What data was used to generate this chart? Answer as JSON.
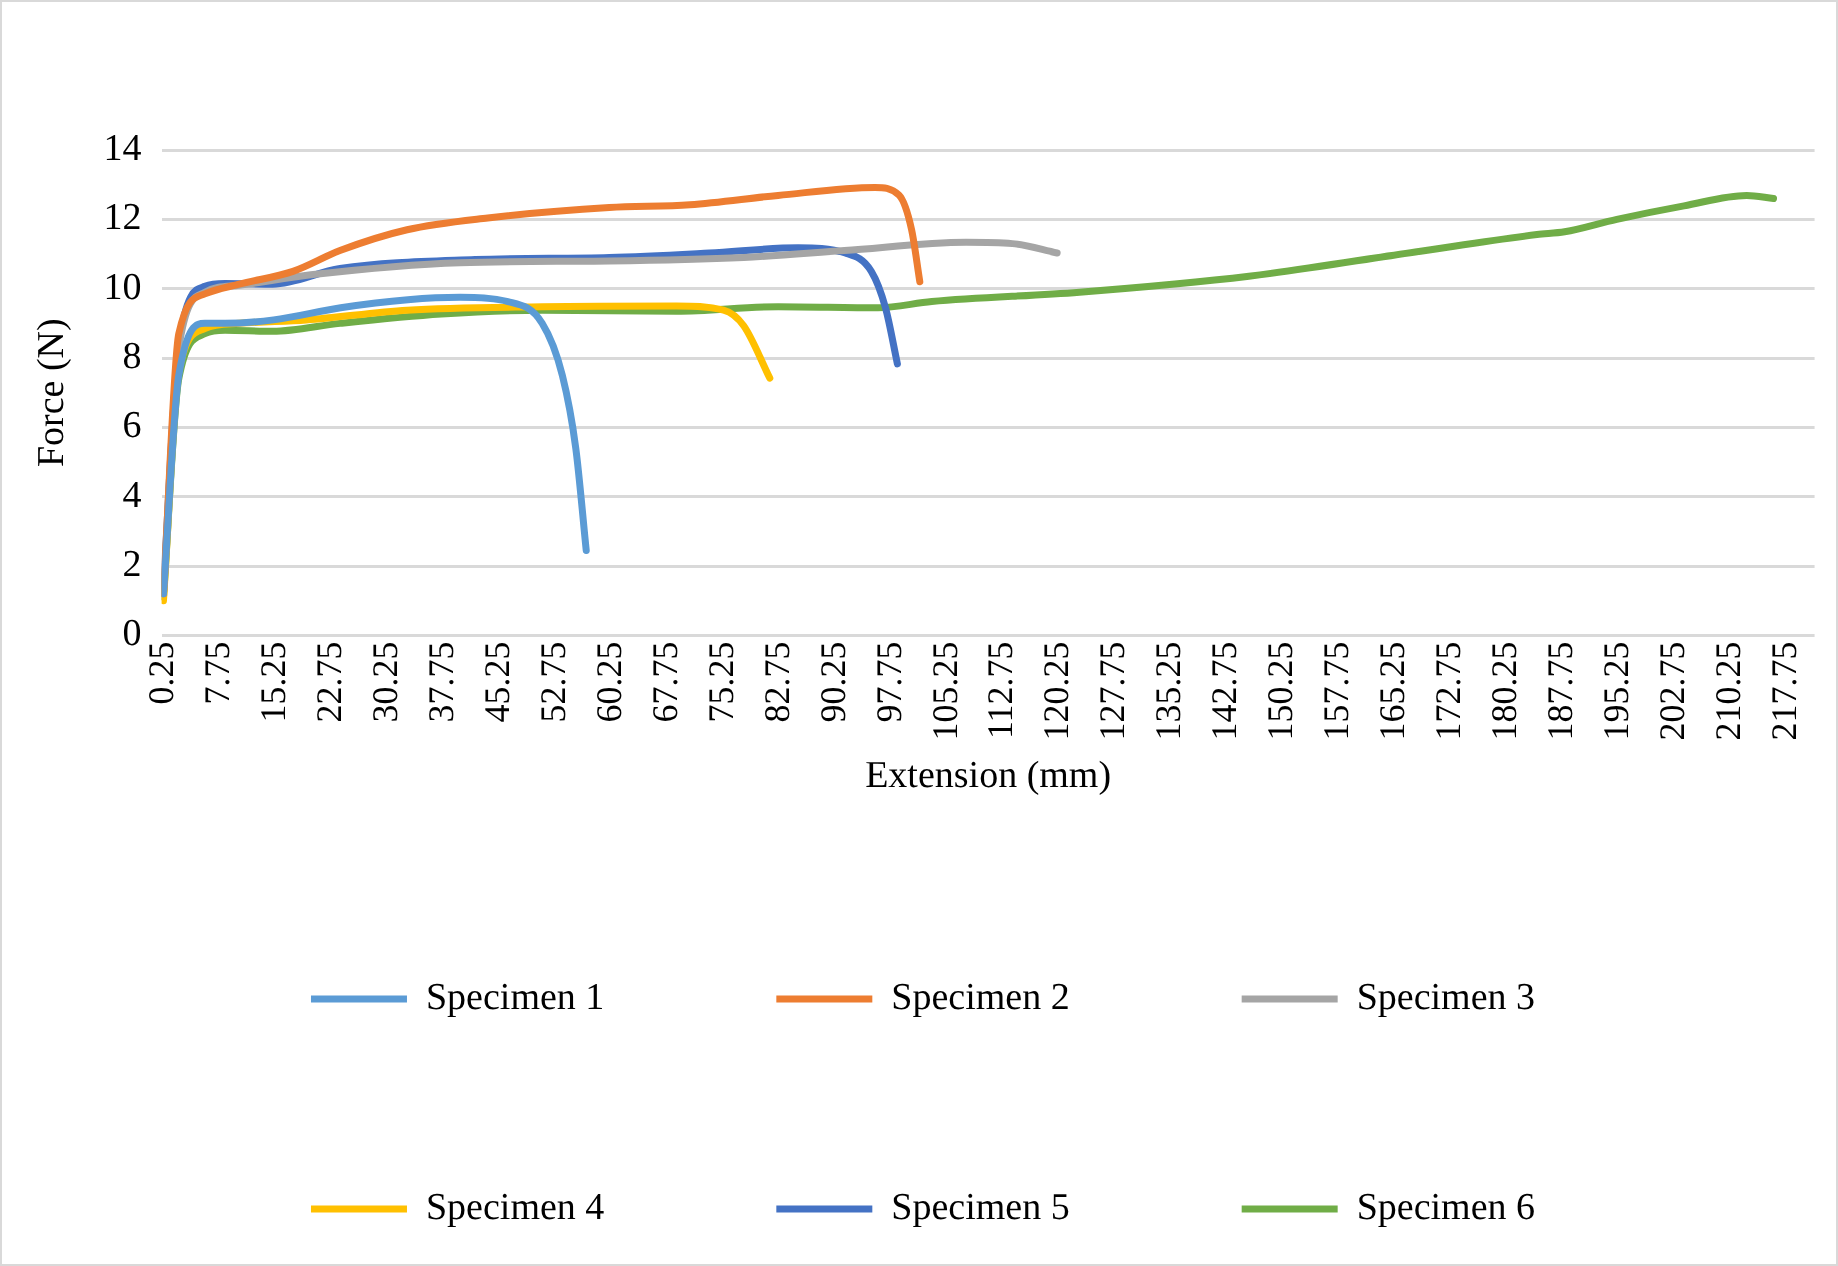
{
  "chart_data": {
    "type": "line",
    "xlabel": "Extension (mm)",
    "ylabel": "Force (N)",
    "xlim": [
      0,
      221.5
    ],
    "xticks": [
      0.25,
      7.75,
      15.25,
      22.75,
      30.25,
      37.75,
      45.25,
      52.75,
      60.25,
      67.75,
      75.25,
      82.75,
      90.25,
      97.75,
      105.25,
      112.75,
      120.25,
      127.75,
      135.25,
      142.75,
      150.25,
      157.75,
      165.25,
      172.75,
      180.25,
      187.75,
      195.25,
      202.75,
      210.25,
      217.75
    ],
    "ylim": [
      0,
      14
    ],
    "yticks": [
      0,
      2,
      4,
      6,
      8,
      10,
      12,
      14
    ],
    "grid": "y",
    "legend": "bottom",
    "marker": "none",
    "line_style": "solid",
    "series": [
      {
        "name": "Specimen 1",
        "color": "#5b9bd5",
        "x": [
          0.25,
          2.3,
          5.8,
          8.5,
          15,
          24,
          33,
          40,
          46.4,
          51,
          53.7,
          55.5,
          56.9
        ],
        "values": [
          1.2,
          7.5,
          9.0,
          9.0,
          9.1,
          9.45,
          9.68,
          9.75,
          9.63,
          9.0,
          7.5,
          5.4,
          2.45
        ]
      },
      {
        "name": "Specimen 2",
        "color": "#ed7d31",
        "x": [
          0.25,
          2.3,
          5.8,
          10.4,
          17.6,
          23.9,
          32.9,
          43.7,
          60,
          70.8,
          82.6,
          95.6,
          98.8,
          100.5,
          101.6
        ],
        "values": [
          1.2,
          8.7,
          9.85,
          10.13,
          10.5,
          11.1,
          11.7,
          12.04,
          12.34,
          12.42,
          12.69,
          12.92,
          12.7,
          11.7,
          10.2
        ]
      },
      {
        "name": "Specimen 3",
        "color": "#a5a5a5",
        "x": [
          0.25,
          2.3,
          5.8,
          10.4,
          20,
          40,
          60,
          78,
          91.5,
          107.8,
          114,
          120
        ],
        "values": [
          1.2,
          8.3,
          9.9,
          10.1,
          10.4,
          10.75,
          10.8,
          10.9,
          11.1,
          11.34,
          11.3,
          11.03
        ]
      },
      {
        "name": "Specimen 4",
        "color": "#ffc000",
        "x": [
          0.25,
          2.3,
          5.8,
          10.4,
          19.4,
          32.9,
          51,
          69,
          75.3,
          78,
          81.5
        ],
        "values": [
          1.0,
          7.6,
          8.85,
          9.0,
          9.1,
          9.38,
          9.48,
          9.5,
          9.38,
          8.93,
          7.42
        ]
      },
      {
        "name": "Specimen 5",
        "color": "#4472c4",
        "x": [
          0.25,
          2.3,
          5.8,
          8.5,
          14.9,
          23.9,
          42,
          60,
          73.4,
          85.3,
          91.6,
          95.1,
          97,
          98.6
        ],
        "values": [
          1.4,
          8.4,
          10.07,
          10.15,
          10.13,
          10.58,
          10.84,
          10.9,
          11.03,
          11.18,
          11.03,
          10.5,
          9.45,
          7.83
        ]
      },
      {
        "name": "Specimen 6",
        "color": "#70ad47",
        "x": [
          0.25,
          2.3,
          5.8,
          8.5,
          14.9,
          23.9,
          37.5,
          51,
          69,
          82.6,
          96,
          103.2,
          123,
          145.7,
          168,
          184.3,
          188,
          195,
          204,
          212.4,
          216
        ],
        "values": [
          1.1,
          7.4,
          8.7,
          8.8,
          8.77,
          9.0,
          9.27,
          9.38,
          9.35,
          9.48,
          9.45,
          9.63,
          9.9,
          10.36,
          11.06,
          11.56,
          11.64,
          12.0,
          12.39,
          12.69,
          12.6
        ]
      }
    ]
  }
}
